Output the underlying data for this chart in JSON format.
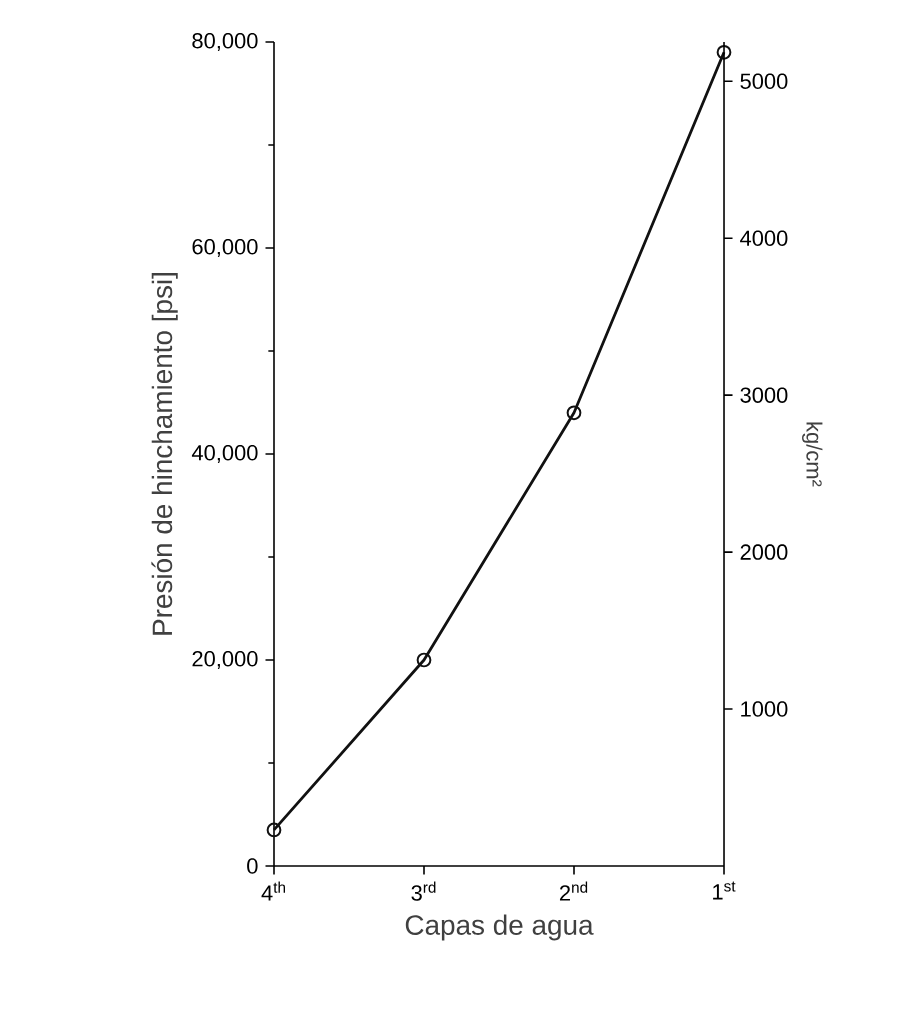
{
  "chart_data": {
    "type": "line",
    "xlabel": "Capas de agua",
    "ylabel": "Presión de hinchamiento [psi]",
    "y2label": "kg/cm²",
    "categories": [
      "4$^{th}$",
      "3$^{rd}$",
      "2$^{nd}$",
      "1$^{st}$"
    ],
    "series": [
      {
        "color": "#111111",
        "values": [
          3500,
          20000,
          44000,
          79000
        ]
      }
    ],
    "ylim": [
      0,
      80000
    ],
    "yticks": [
      {
        "value": 0,
        "label": "0"
      },
      {
        "value": 10000,
        "label": null
      },
      {
        "value": 20000,
        "label": "20,000"
      },
      {
        "value": 30000,
        "label": null
      },
      {
        "value": 40000,
        "label": "40,000"
      },
      {
        "value": 50000,
        "label": null
      },
      {
        "value": 60000,
        "label": "60,000"
      },
      {
        "value": 70000,
        "label": null
      },
      {
        "value": 80000,
        "label": "80,000"
      }
    ],
    "y2lim": [
      0,
      5250
    ],
    "y2ticks": [
      1000,
      2000,
      3000,
      4000,
      5000
    ],
    "marker": "circle",
    "line_style": "solid"
  }
}
